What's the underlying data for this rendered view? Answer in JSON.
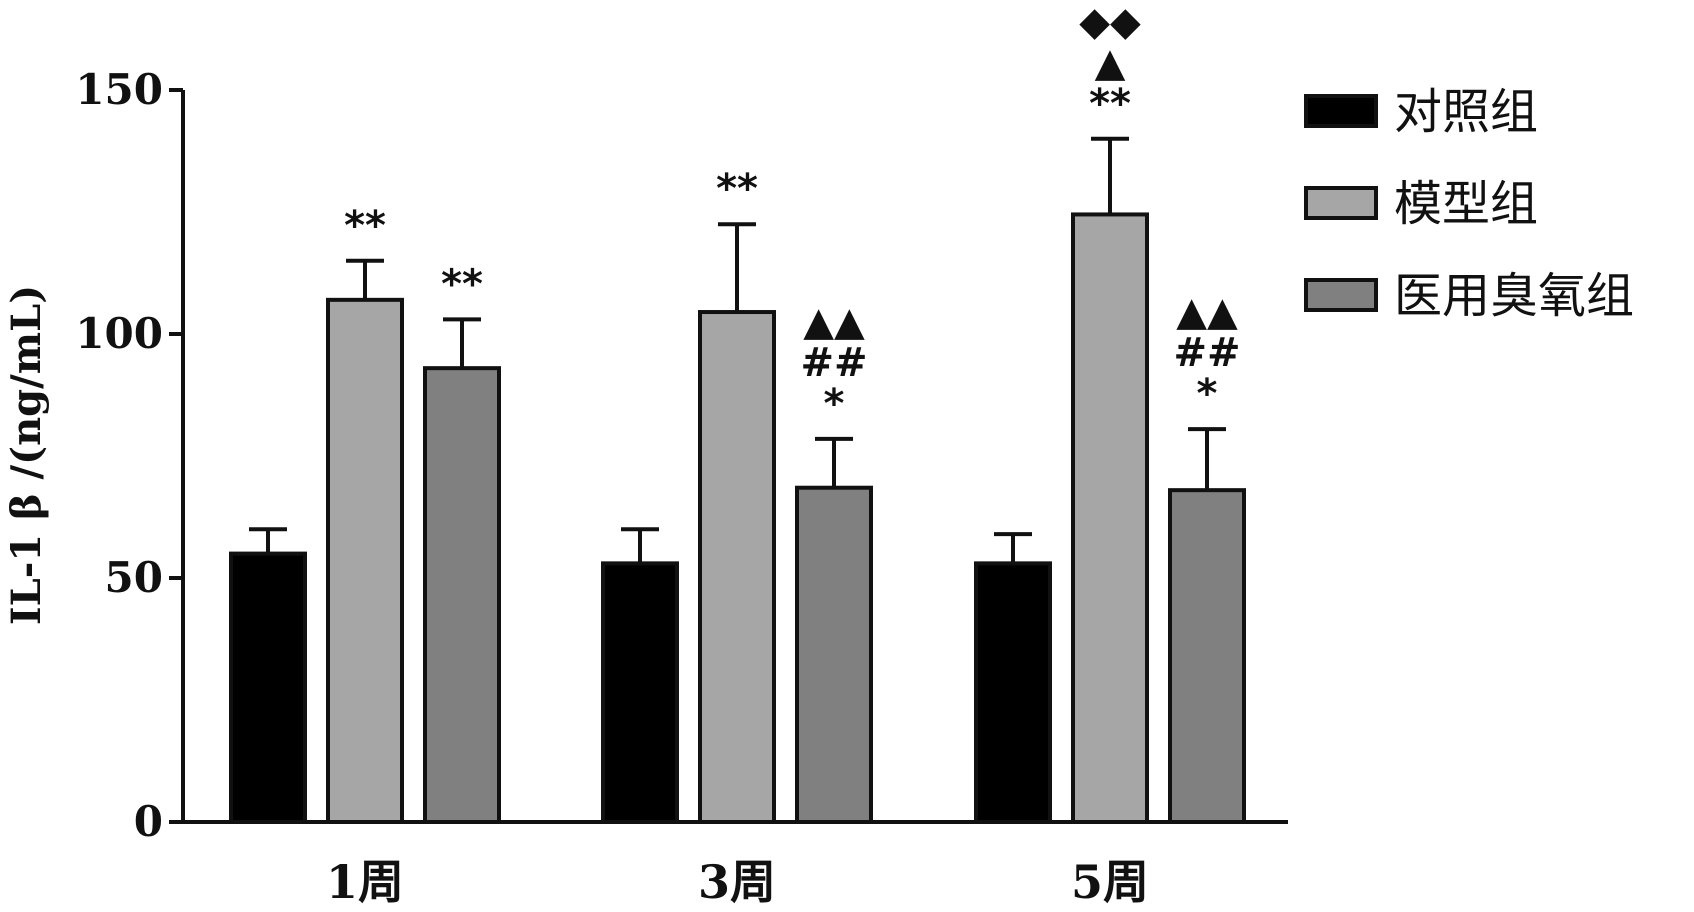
{
  "chart_data": {
    "type": "bar",
    "title": "",
    "xlabel": "",
    "ylabel": "IL-1 β /(ng/mL)",
    "ylim": [
      0,
      150
    ],
    "yticks": [
      0,
      50,
      100,
      150
    ],
    "categories": [
      "1周",
      "3周",
      "5周"
    ],
    "legend_position": "right",
    "grid": false,
    "series": [
      {
        "name": "对照组",
        "color": "#000000",
        "values": [
          55,
          53,
          53
        ],
        "errors": [
          5,
          7,
          6
        ],
        "annotations": [
          [],
          [],
          []
        ]
      },
      {
        "name": "模型组",
        "color": "#a6a6a6",
        "values": [
          107,
          104.5,
          124.5
        ],
        "errors": [
          8,
          18,
          15.5
        ],
        "annotations": [
          [
            "**"
          ],
          [
            "**"
          ],
          [
            "**",
            "▲",
            "◆◆"
          ]
        ]
      },
      {
        "name": "医用臭氧组",
        "color": "#808080",
        "values": [
          93,
          68.5,
          68
        ],
        "errors": [
          10,
          10,
          12.5
        ],
        "annotations": [
          [
            "**"
          ],
          [
            "*",
            "##",
            "▲▲"
          ],
          [
            "*",
            "##",
            "▲▲"
          ]
        ]
      }
    ]
  }
}
